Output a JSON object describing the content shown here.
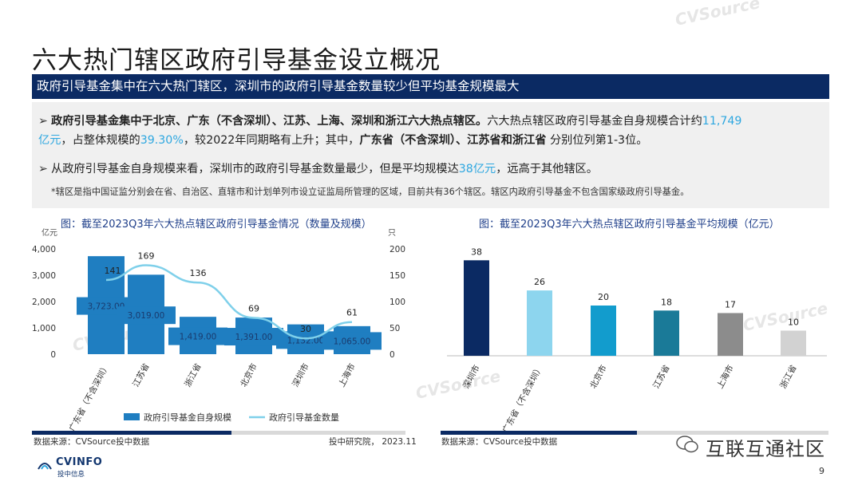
{
  "title": "六大热门辖区政府引导基金设立概况",
  "banner": "政府引导基金集中在六大热门辖区，深圳市的政府引导基金数量较少但平均基金规模最大",
  "summary": {
    "b1_bold": "政府引导基金集中于北京、广东（不含深圳）、江苏、上海、深圳和浙江六大热点辖区。",
    "b1_text1": "六大热点辖区政府引导基金自身规模合计约",
    "b1_hl1": "11,749",
    "b1_hl2": "亿元",
    "b1_text2": "，占整体规模的",
    "b1_hl3": "39.30%",
    "b1_text3": "，较2022年同期略有上升；其中，",
    "b1_bold2": "广东省（不含深圳）、江苏省和浙江省",
    "b1_text4": " 分别位列第1-3位。",
    "b2_text1": "从政府引导基金自身规模来看，深圳市的政府引导基金数量最少，但是平均规模达",
    "b2_hl": "38亿元",
    "b2_text2": "，远高于其他辖区。",
    "note": "*辖区是指中国证监分别会在省、自治区、直辖市和计划单列市设立证监局所管理的区域，目前共有36个辖区。辖区内政府引导基金不包含国家级政府引导基金。"
  },
  "chart_data": [
    {
      "type": "bar+line",
      "title": "图：截至2023Q3年六大热点辖区政府引导基金情况（数量及规模）",
      "categories": [
        "广东省（不含深圳）",
        "江苏省",
        "浙江省",
        "北京市",
        "深圳市",
        "上海市"
      ],
      "y_left_unit": "亿元",
      "y_right_unit": "只",
      "ylim_left": [
        0,
        4000
      ],
      "ylim_right": [
        0,
        200
      ],
      "y_left_ticks": [
        "0",
        "1,000",
        "2,000",
        "3,000",
        "4,000"
      ],
      "y_right_ticks": [
        "0",
        "50",
        "100",
        "150",
        "200"
      ],
      "series": [
        {
          "name": "政府引导基金自身规模",
          "kind": "bar",
          "axis": "left",
          "values": [
            3723,
            3019,
            1419,
            1391,
            1132,
            1065
          ],
          "labels": [
            "3,723.00",
            "3,019.00",
            "1,419.00",
            "1,391.00",
            "1,132.00",
            "1,065.00"
          ]
        },
        {
          "name": "政府引导基金数量",
          "kind": "line",
          "axis": "right",
          "values": [
            141,
            169,
            136,
            69,
            30,
            61
          ],
          "labels": [
            "141",
            "169",
            "136",
            "69",
            "30",
            "61"
          ]
        }
      ],
      "colors": {
        "bar": "#1f7ec1",
        "line": "#7fd0ea"
      },
      "legend": "bottom"
    },
    {
      "type": "bar",
      "title": "图：截至2023Q3年六大热点辖区政府引导基金平均规模（亿元）",
      "categories": [
        "深圳市",
        "广东省（不含深圳）",
        "北京市",
        "江苏省",
        "上海市",
        "浙江省"
      ],
      "values": [
        38,
        26,
        20,
        18,
        17,
        10
      ],
      "labels": [
        "38",
        "26",
        "20",
        "18",
        "17",
        "10"
      ],
      "colors": [
        "#0b2a63",
        "#8dd5ee",
        "#129ccd",
        "#1a7a98",
        "#8c8c8c",
        "#d2d2d2"
      ],
      "ylim": [
        0,
        40
      ]
    }
  ],
  "footer": {
    "source_left": "数据来源：CVSource投中数据",
    "org_left": "投中研究院， 2023.11",
    "source_right": "数据来源：CVSource投中数据",
    "logo": "CVINFO",
    "logo_sub": "投中信息",
    "page": "9",
    "wechat": "互联互通社区",
    "watermark": "CVSource"
  }
}
